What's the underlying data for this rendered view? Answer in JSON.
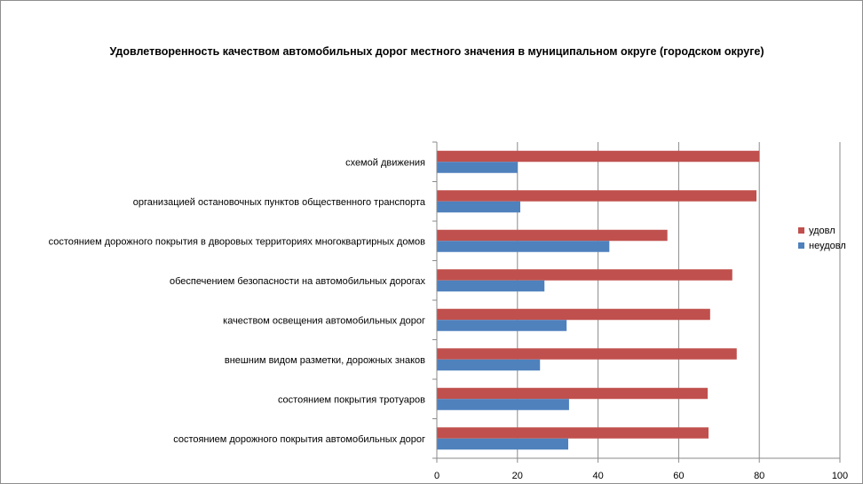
{
  "chart_data": {
    "type": "bar",
    "orientation": "horizontal",
    "title": "Удовлетворенность качеством автомобильных дорог местного значения в муниципальном округе (городском округе)",
    "categories": [
      "схемой движения",
      "организацией остановочных пунктов общественного транспорта",
      "состоянием дорожного покрытия в дворовых территориях многоквартирных домов",
      "обеспечением безопасности на автомобильных дорогах",
      "качеством освещения автомобильных дорог",
      "внешним видом разметки, дорожных знаков",
      "состоянием покрытия тротуаров",
      "состоянием дорожного покрытия автомобильных дорог"
    ],
    "series": [
      {
        "name": "удовл",
        "color": "#c0504d",
        "values": [
          80,
          79.3,
          57.2,
          73.3,
          67.8,
          74.4,
          67.2,
          67.4
        ]
      },
      {
        "name": "неудовл",
        "color": "#4f81bd",
        "values": [
          20,
          20.7,
          42.8,
          26.7,
          32.2,
          25.6,
          32.8,
          32.6
        ]
      }
    ],
    "xlim": [
      0,
      100
    ],
    "xticks": [
      0,
      20,
      40,
      60,
      80,
      100
    ],
    "grid": true,
    "legend_position": "right"
  }
}
